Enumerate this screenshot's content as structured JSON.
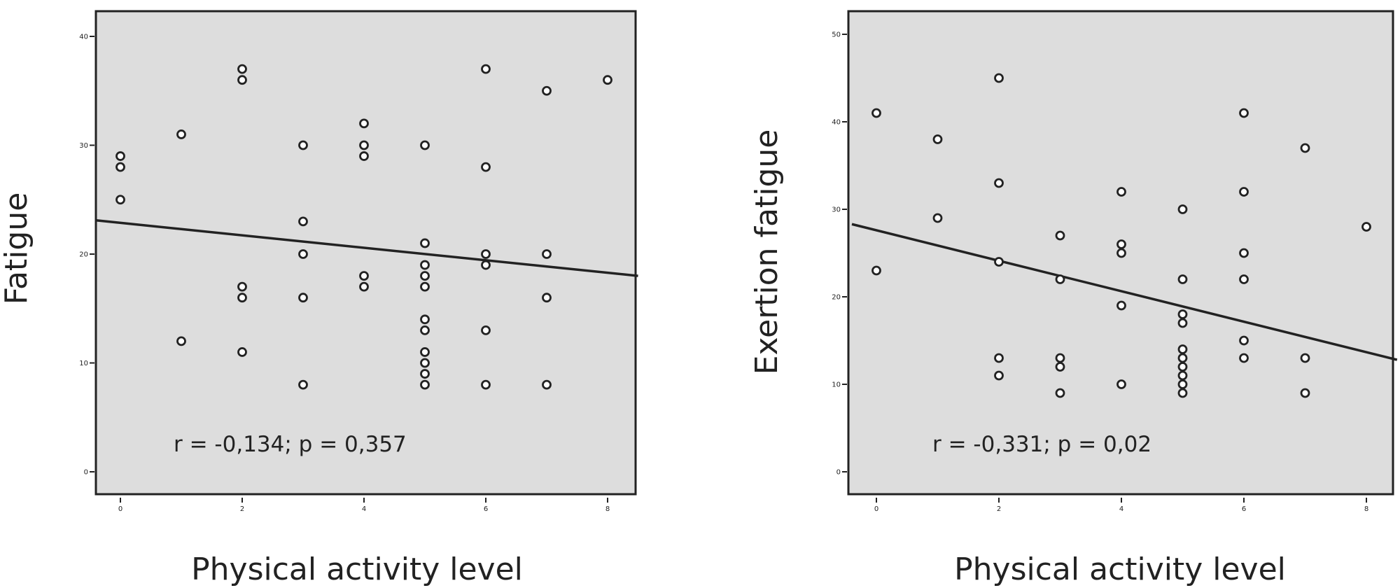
{
  "chart_data": [
    {
      "type": "scatter",
      "xlabel": "Physical activity level",
      "ylabel": "Fatigue",
      "xlim": [
        0,
        8
      ],
      "ylim": [
        0,
        40
      ],
      "xticks": [
        0,
        2,
        4,
        6,
        8
      ],
      "yticks": [
        0,
        10,
        20,
        30,
        40
      ],
      "annotation": "r = -0,134; p = 0,357",
      "fit_line": {
        "x": [
          -0.4,
          8.5
        ],
        "y": [
          23.1,
          18.0
        ]
      },
      "grid": false,
      "legend": "none",
      "points": [
        [
          0,
          29
        ],
        [
          0,
          28
        ],
        [
          0,
          25
        ],
        [
          1,
          31
        ],
        [
          1,
          12
        ],
        [
          2,
          37
        ],
        [
          2,
          36
        ],
        [
          2,
          17
        ],
        [
          2,
          16
        ],
        [
          2,
          11
        ],
        [
          3,
          30
        ],
        [
          3,
          23
        ],
        [
          3,
          20
        ],
        [
          3,
          16
        ],
        [
          3,
          8
        ],
        [
          4,
          32
        ],
        [
          4,
          30
        ],
        [
          4,
          29
        ],
        [
          4,
          18
        ],
        [
          4,
          17
        ],
        [
          5,
          30
        ],
        [
          5,
          21
        ],
        [
          5,
          19
        ],
        [
          5,
          18
        ],
        [
          5,
          17
        ],
        [
          5,
          14
        ],
        [
          5,
          13
        ],
        [
          5,
          11
        ],
        [
          5,
          10
        ],
        [
          5,
          9
        ],
        [
          5,
          8
        ],
        [
          6,
          37
        ],
        [
          6,
          28
        ],
        [
          6,
          20
        ],
        [
          6,
          19
        ],
        [
          6,
          13
        ],
        [
          6,
          8
        ],
        [
          7,
          35
        ],
        [
          7,
          20
        ],
        [
          7,
          16
        ],
        [
          7,
          8
        ],
        [
          8,
          36
        ]
      ]
    },
    {
      "type": "scatter",
      "xlabel": "Physical activity level",
      "ylabel": "Exertion fatigue",
      "xlim": [
        0,
        8
      ],
      "ylim": [
        0,
        50
      ],
      "xticks": [
        0,
        2,
        4,
        6,
        8
      ],
      "yticks": [
        0,
        10,
        20,
        30,
        40,
        50
      ],
      "annotation": "r = -0,331; p = 0,02",
      "fit_line": {
        "x": [
          -0.4,
          8.5
        ],
        "y": [
          28.3,
          12.8
        ]
      },
      "grid": false,
      "legend": "none",
      "points": [
        [
          0,
          41
        ],
        [
          0,
          23
        ],
        [
          1,
          38
        ],
        [
          1,
          29
        ],
        [
          2,
          45
        ],
        [
          2,
          33
        ],
        [
          2,
          24
        ],
        [
          2,
          13
        ],
        [
          2,
          11
        ],
        [
          3,
          27
        ],
        [
          3,
          22
        ],
        [
          3,
          13
        ],
        [
          3,
          12
        ],
        [
          3,
          9
        ],
        [
          4,
          32
        ],
        [
          4,
          26
        ],
        [
          4,
          25
        ],
        [
          4,
          19
        ],
        [
          4,
          10
        ],
        [
          5,
          30
        ],
        [
          5,
          22
        ],
        [
          5,
          18
        ],
        [
          5,
          17
        ],
        [
          5,
          14
        ],
        [
          5,
          13
        ],
        [
          5,
          12
        ],
        [
          5,
          11
        ],
        [
          5,
          10
        ],
        [
          5,
          9
        ],
        [
          6,
          41
        ],
        [
          6,
          32
        ],
        [
          6,
          25
        ],
        [
          6,
          22
        ],
        [
          6,
          15
        ],
        [
          6,
          13
        ],
        [
          7,
          37
        ],
        [
          7,
          13
        ],
        [
          7,
          9
        ],
        [
          8,
          28
        ]
      ]
    }
  ]
}
